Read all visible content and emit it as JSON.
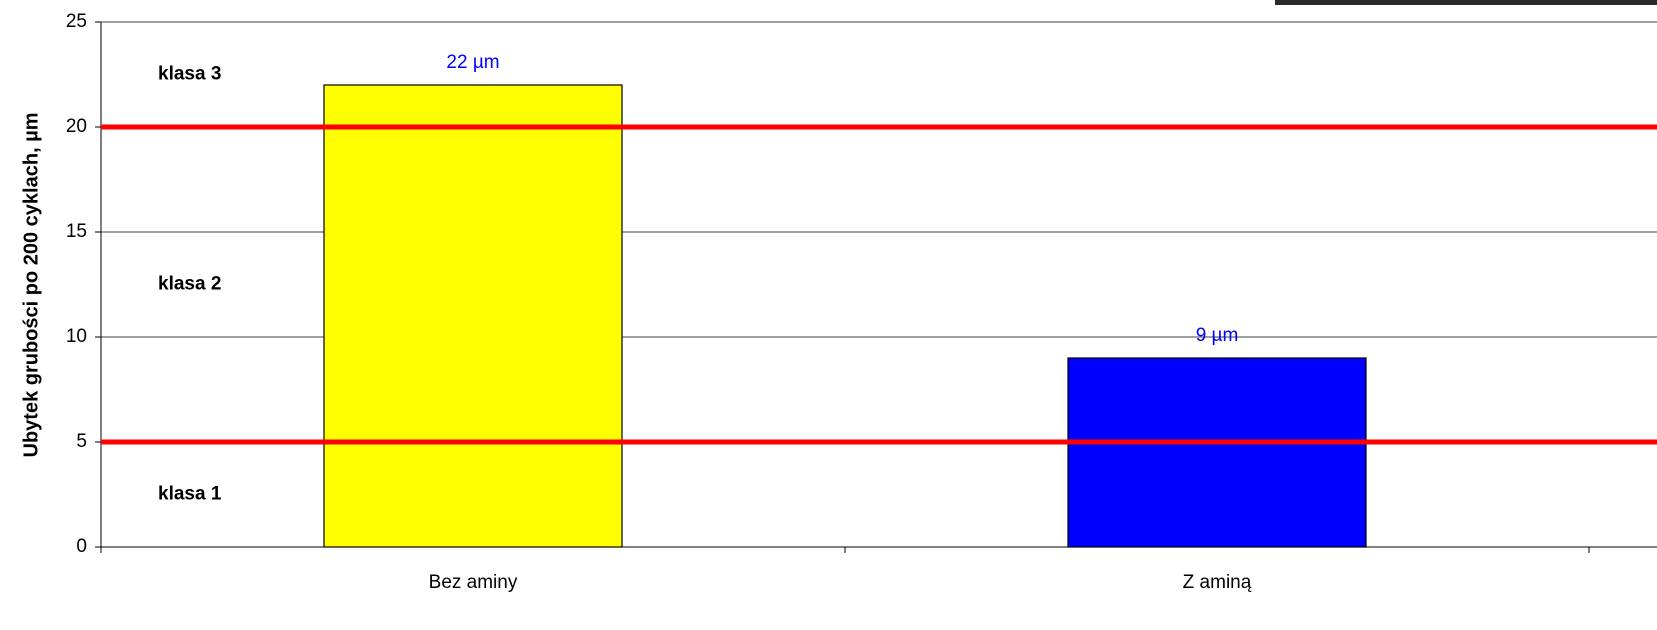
{
  "chart_data": {
    "type": "bar",
    "y_label": "Ubytek grubości po 200 cyklach, µm",
    "categories": [
      "Bez aminy",
      "Z aminą"
    ],
    "values": [
      22,
      9
    ],
    "value_labels": [
      "22 µm",
      "9 µm"
    ],
    "colors": [
      "#ffff00",
      "#0000ff"
    ],
    "value_label_color": "#0000ff",
    "reference_lines": [
      5,
      20
    ],
    "reference_color": "#ff0000",
    "zone_labels": [
      "klasa 1",
      "klasa 2",
      "klasa 3"
    ],
    "ylim": [
      0,
      25
    ],
    "yticks": [
      0,
      5,
      10,
      15,
      20,
      25
    ],
    "grid": true
  }
}
